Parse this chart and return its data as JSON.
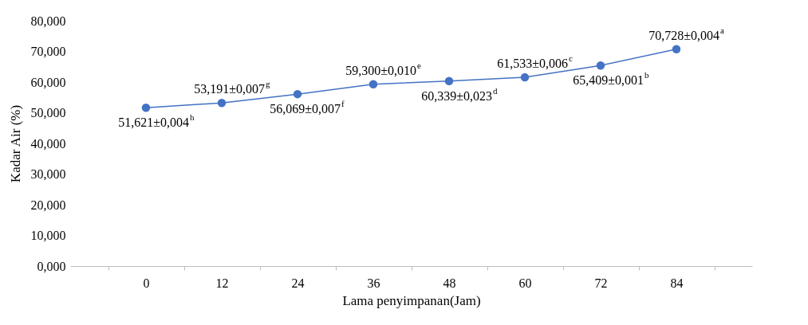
{
  "chart_data": {
    "type": "line",
    "xlabel": "Lama penyimpanan(Jam)",
    "ylabel": "Kadar Air (%)",
    "categories": [
      "0",
      "12",
      "24",
      "36",
      "48",
      "60",
      "72",
      "84"
    ],
    "values": [
      51.621,
      53.191,
      56.069,
      59.3,
      60.339,
      61.533,
      65.409,
      70.728
    ],
    "value_labels": [
      "51,621±0,004$^{h}$",
      "53,191±0,007$^{g}$",
      "56,069±0,007$^{f}$",
      "59,300±0,010$^{e}$",
      "60,339±0,023$^{d}$",
      "61,533±0,006$^{c}$",
      "65,409±0,001$^{b}$",
      "70,728±0,004$^{a}$"
    ],
    "color": "#4472c4",
    "marker": "circle",
    "line_style": "solid",
    "ylim": [
      0,
      80
    ],
    "yticks": [
      {
        "value": 0,
        "label": "0,000"
      },
      {
        "value": 10,
        "label": "10,000"
      },
      {
        "value": 20,
        "label": "20,000"
      },
      {
        "value": 30,
        "label": "30,000"
      },
      {
        "value": 40,
        "label": "40,000"
      },
      {
        "value": 50,
        "label": "50,000"
      },
      {
        "value": 60,
        "label": "60,000"
      },
      {
        "value": 70,
        "label": "70,000"
      },
      {
        "value": 80,
        "label": "80,000"
      }
    ],
    "grid": false
  }
}
